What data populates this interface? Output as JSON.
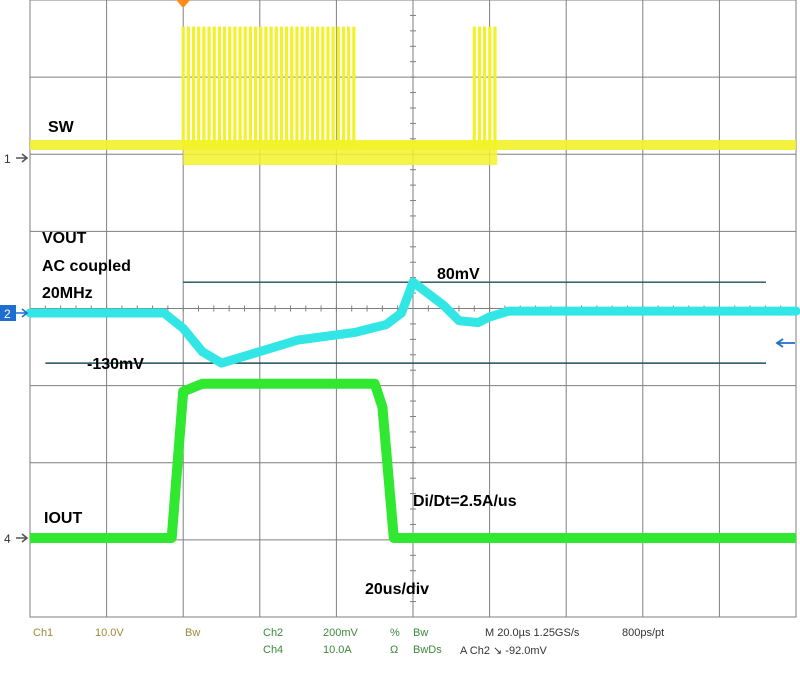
{
  "colors": {
    "background": "#ffffff",
    "grid": "#7f7f7f",
    "ch1": "#f2f22a",
    "ch2": "#33e6e6",
    "ch4": "#2fe82f",
    "marker_line": "#1f4f5a",
    "trigger_marker": "#ff8c1a",
    "ch2_marker": "#1e6ecf"
  },
  "channel_markers": [
    "1",
    "2",
    "4"
  ],
  "annotations": {
    "sw": "SW",
    "vout_line1": "VOUT",
    "vout_line2": "AC coupled",
    "vout_line3": "20MHz",
    "vpos": "80mV",
    "vneg": "-130mV",
    "iout": "IOUT",
    "didt": "Di/Dt=2.5A/us",
    "timebase": "20us/div"
  },
  "status": {
    "ch1_label": "Ch1",
    "ch1_scale": "10.0V",
    "ch1_bw": "Bw",
    "ch2_label": "Ch2",
    "ch2_scale": "200mV",
    "ch2_coupling": "%",
    "ch2_bw": "Bw",
    "ch4_label": "Ch4",
    "ch4_scale": "10.0A",
    "ch4_coupling": "Ω",
    "ch4_bw": "BwDs",
    "horiz": "M 20.0µs 1.25GS/s",
    "record": "800ps/pt",
    "trigger": "A  Ch2  ↘  -92.0mV"
  },
  "chart_data": {
    "type": "line",
    "title": "",
    "xlabel": "20us/div",
    "ylabel": "",
    "x_unit": "us",
    "xlim": [
      -40,
      160
    ],
    "grid": true,
    "series": [
      {
        "name": "SW",
        "scale": "10.0V/div",
        "note": "switching burst between load steps",
        "x": [
          -40,
          0,
          0,
          45,
          48,
          76,
          82,
          160
        ],
        "y_div": [
          0.0,
          0.0,
          1.6,
          1.6,
          0.0,
          1.6,
          0.0,
          0.0
        ]
      },
      {
        "name": "VOUT",
        "scale": "200mV/div",
        "x": [
          -40,
          -5,
          0,
          5,
          10,
          20,
          30,
          45,
          53,
          57,
          60,
          68,
          72,
          77,
          80,
          85,
          95,
          160
        ],
        "y_mV": [
          0,
          0,
          -40,
          -100,
          -130,
          -100,
          -70,
          -50,
          -30,
          0,
          80,
          20,
          -20,
          -25,
          -10,
          5,
          5,
          5
        ]
      },
      {
        "name": "IOUT",
        "scale": "10.0A/div",
        "x": [
          -40,
          -3,
          0,
          5,
          50,
          52,
          55,
          160
        ],
        "y_div": [
          0.0,
          0.0,
          1.9,
          2.0,
          2.0,
          1.7,
          0.0,
          0.0
        ]
      }
    ],
    "markers": [
      {
        "label": "80mV",
        "value_mV": 80
      },
      {
        "label": "-130mV",
        "value_mV": -130
      }
    ]
  }
}
